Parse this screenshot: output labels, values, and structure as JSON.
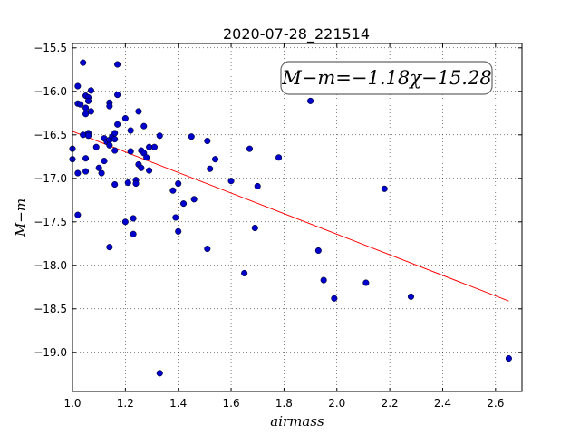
{
  "chart_data": {
    "type": "scatter",
    "title": "2020-07-28_221514",
    "xlabel": "airmass",
    "ylabel": "M−m",
    "xlim": [
      1.0,
      2.7
    ],
    "ylim": [
      -19.45,
      -15.45
    ],
    "y_inverted": true,
    "grid": true,
    "xticks": [
      1.0,
      1.2,
      1.4,
      1.6,
      1.8,
      2.0,
      2.2,
      2.4,
      2.6
    ],
    "xtick_labels": [
      "1.0",
      "1.2",
      "1.4",
      "1.6",
      "1.8",
      "2.0",
      "2.2",
      "2.4",
      "2.6"
    ],
    "yticks": [
      -15.5,
      -16.0,
      -16.5,
      -17.0,
      -17.5,
      -18.0,
      -18.5,
      -19.0
    ],
    "ytick_labels": [
      "−15.5",
      "−16.0",
      "−16.5",
      "−17.0",
      "−17.5",
      "−18.0",
      "−18.5",
      "−19.0"
    ],
    "annotation": "M−m=−1.18χ−15.28",
    "fit_line": {
      "x": [
        1.0,
        2.65
      ],
      "y": [
        -16.46,
        -18.41
      ],
      "color": "#ff0000"
    },
    "point_color": "#0000cc",
    "points": [
      [
        1.0,
        -16.66
      ],
      [
        1.0,
        -16.78
      ],
      [
        1.02,
        -15.94
      ],
      [
        1.02,
        -16.14
      ],
      [
        1.03,
        -16.15
      ],
      [
        1.02,
        -16.94
      ],
      [
        1.02,
        -17.42
      ],
      [
        1.04,
        -15.67
      ],
      [
        1.04,
        -16.5
      ],
      [
        1.05,
        -16.77
      ],
      [
        1.05,
        -16.92
      ],
      [
        1.05,
        -16.05
      ],
      [
        1.06,
        -16.07
      ],
      [
        1.06,
        -16.11
      ],
      [
        1.05,
        -16.19
      ],
      [
        1.05,
        -16.26
      ],
      [
        1.06,
        -16.48
      ],
      [
        1.06,
        -16.51
      ],
      [
        1.07,
        -15.99
      ],
      [
        1.07,
        -16.23
      ],
      [
        1.09,
        -16.64
      ],
      [
        1.1,
        -16.88
      ],
      [
        1.11,
        -16.94
      ],
      [
        1.12,
        -16.54
      ],
      [
        1.12,
        -16.8
      ],
      [
        1.13,
        -16.58
      ],
      [
        1.14,
        -16.13
      ],
      [
        1.14,
        -16.17
      ],
      [
        1.14,
        -16.56
      ],
      [
        1.14,
        -16.62
      ],
      [
        1.14,
        -17.79
      ],
      [
        1.15,
        -16.52
      ],
      [
        1.16,
        -16.48
      ],
      [
        1.16,
        -16.55
      ],
      [
        1.16,
        -16.68
      ],
      [
        1.16,
        -17.07
      ],
      [
        1.17,
        -15.69
      ],
      [
        1.17,
        -16.04
      ],
      [
        1.17,
        -16.38
      ],
      [
        1.2,
        -16.31
      ],
      [
        1.2,
        -17.5
      ],
      [
        1.21,
        -17.05
      ],
      [
        1.22,
        -16.45
      ],
      [
        1.22,
        -16.69
      ],
      [
        1.23,
        -17.46
      ],
      [
        1.23,
        -17.64
      ],
      [
        1.24,
        -17.02
      ],
      [
        1.24,
        -17.06
      ],
      [
        1.25,
        -16.23
      ],
      [
        1.25,
        -16.84
      ],
      [
        1.26,
        -16.68
      ],
      [
        1.26,
        -16.88
      ],
      [
        1.27,
        -16.4
      ],
      [
        1.27,
        -16.71
      ],
      [
        1.28,
        -16.76
      ],
      [
        1.29,
        -16.91
      ],
      [
        1.29,
        -16.64
      ],
      [
        1.31,
        -16.64
      ],
      [
        1.33,
        -16.51
      ],
      [
        1.33,
        -19.24
      ],
      [
        1.38,
        -17.14
      ],
      [
        1.39,
        -17.45
      ],
      [
        1.4,
        -17.06
      ],
      [
        1.4,
        -17.61
      ],
      [
        1.42,
        -17.29
      ],
      [
        1.45,
        -16.52
      ],
      [
        1.46,
        -17.24
      ],
      [
        1.51,
        -16.57
      ],
      [
        1.51,
        -17.81
      ],
      [
        1.52,
        -16.89
      ],
      [
        1.54,
        -16.78
      ],
      [
        1.6,
        -17.03
      ],
      [
        1.65,
        -18.09
      ],
      [
        1.67,
        -16.66
      ],
      [
        1.69,
        -17.57
      ],
      [
        1.7,
        -17.09
      ],
      [
        1.78,
        -16.76
      ],
      [
        1.9,
        -16.11
      ],
      [
        1.93,
        -17.83
      ],
      [
        1.95,
        -18.17
      ],
      [
        1.99,
        -18.38
      ],
      [
        2.11,
        -18.2
      ],
      [
        2.18,
        -17.12
      ],
      [
        2.28,
        -18.36
      ],
      [
        2.65,
        -19.07
      ]
    ]
  }
}
